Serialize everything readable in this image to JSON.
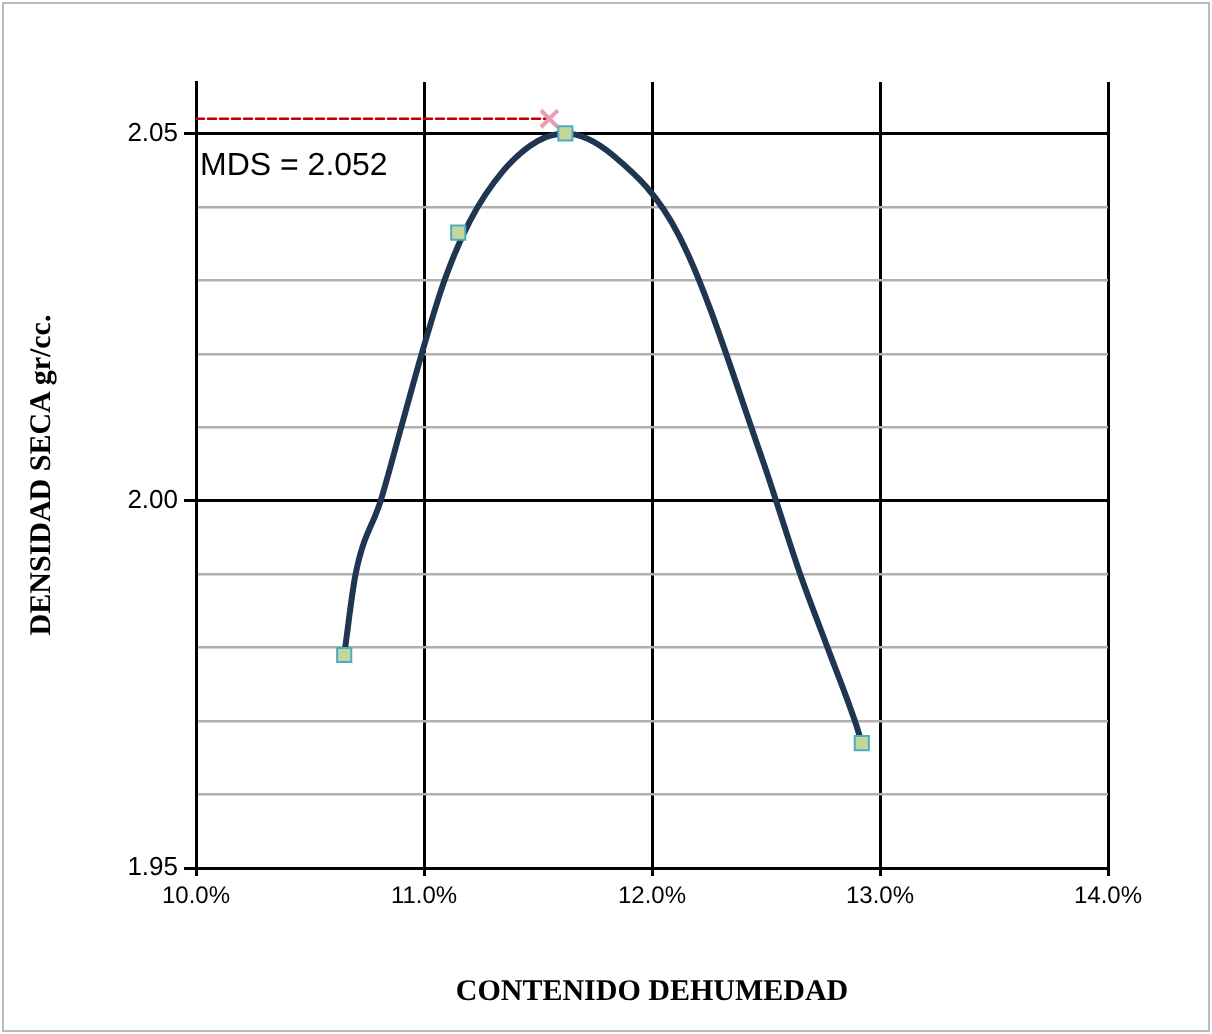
{
  "chart_data": {
    "type": "scatter",
    "xlabel": "CONTENIDO DEHUMEDAD",
    "ylabel": "DENSIDAD SECA gr/cc.",
    "xlim": [
      10,
      14
    ],
    "xticks": [
      {
        "value": 10,
        "label": "10.0%"
      },
      {
        "value": 11,
        "label": "11.0%"
      },
      {
        "value": 12,
        "label": "12.0%"
      },
      {
        "value": 13,
        "label": "13.0%"
      },
      {
        "value": 14,
        "label": "14.0%"
      }
    ],
    "ylim": [
      1.95,
      2.057
    ],
    "yticks": [
      1.95,
      {
        "value": 1.96,
        "label": null
      },
      {
        "value": 1.97,
        "label": null
      },
      {
        "value": 1.98,
        "label": null
      },
      {
        "value": 1.99,
        "label": null
      },
      {
        "value": 2,
        "label": "2.00"
      },
      {
        "value": 2.01,
        "label": null
      },
      {
        "value": 2.02,
        "label": null
      },
      {
        "value": 2.03,
        "label": null
      },
      {
        "value": 2.04,
        "label": null
      },
      2.05
    ],
    "grid": true,
    "legend": false,
    "series": [
      {
        "type": "line",
        "color": "#1f3550",
        "marker": "none",
        "line_style": "solid",
        "x": [
          10.65,
          10.7,
          10.81,
          10.9,
          10.99,
          11.09,
          11.2,
          11.35,
          11.5,
          11.62,
          11.83,
          12.12,
          12.48,
          12.65,
          12.77,
          12.89,
          12.92
        ],
        "values": [
          1.979,
          1.99,
          2.0,
          2.01,
          2.02,
          2.03,
          2.038,
          2.045,
          2.049,
          2.05,
          2.047,
          2.036,
          2.006,
          1.99,
          1.98,
          1.97,
          1.967
        ]
      },
      {
        "color": "#c4d79b",
        "marker": "square",
        "x": [
          10.65,
          11.15,
          11.62,
          12.92
        ],
        "values": [
          1.979,
          2.0365,
          2.05,
          1.967
        ]
      },
      {
        "type": "line",
        "color": "#c00000",
        "marker": "none",
        "line_style": "dashed",
        "x": [
          10,
          11.55
        ],
        "values": [
          2.052,
          2.052
        ]
      },
      {
        "color": "#e6a0b4",
        "marker": "cross",
        "x": [
          11.55
        ],
        "values": [
          2.052
        ]
      }
    ],
    "annotations": [
      "MDS = 2.052"
    ]
  }
}
